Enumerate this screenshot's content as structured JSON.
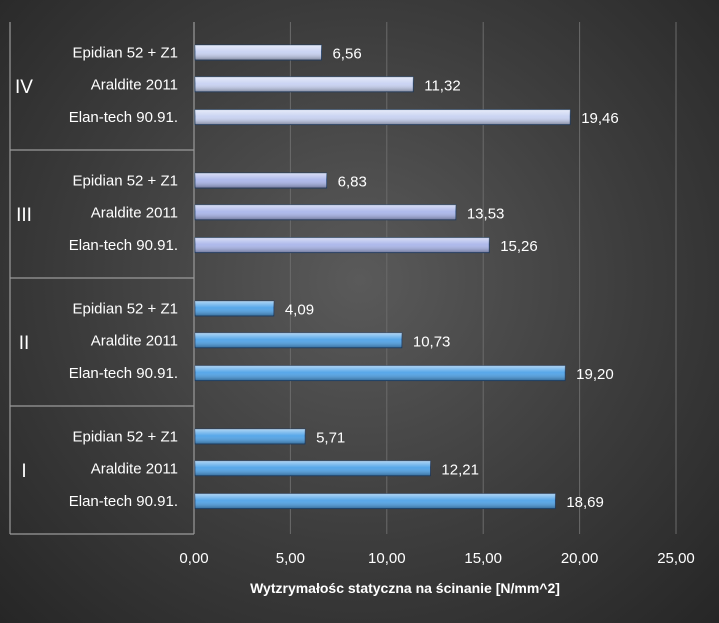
{
  "chart_data": {
    "type": "bar",
    "orientation": "horizontal",
    "title": "",
    "xlabel": "Wytzrymałośc statyczna na ścinanie [N/mm^2]",
    "ylabel": "",
    "xlim": [
      0,
      25
    ],
    "xticks": [
      "0,00",
      "5,00",
      "10,00",
      "15,00",
      "20,00",
      "25,00"
    ],
    "grid": true,
    "legend": "none",
    "groups": [
      {
        "name": "IV",
        "color": "#c8d2f2",
        "bars": [
          {
            "label": "Epidian 52 + Z1",
            "value": 6.56,
            "value_label": "6,56"
          },
          {
            "label": "Araldite 2011",
            "value": 11.32,
            "value_label": "11,32"
          },
          {
            "label": "Elan-tech 90.91.",
            "value": 19.46,
            "value_label": "19,46"
          }
        ]
      },
      {
        "name": "III",
        "color": "#aab6ea",
        "bars": [
          {
            "label": "Epidian 52 + Z1",
            "value": 6.83,
            "value_label": "6,83"
          },
          {
            "label": "Araldite 2011",
            "value": 13.53,
            "value_label": "13,53"
          },
          {
            "label": "Elan-tech 90.91.",
            "value": 15.26,
            "value_label": "15,26"
          }
        ]
      },
      {
        "name": "II",
        "color": "#4fa3e8",
        "bars": [
          {
            "label": "Epidian 52 + Z1",
            "value": 4.09,
            "value_label": "4,09"
          },
          {
            "label": "Araldite 2011",
            "value": 10.73,
            "value_label": "10,73"
          },
          {
            "label": "Elan-tech 90.91.",
            "value": 19.2,
            "value_label": "19,20"
          }
        ]
      },
      {
        "name": "I",
        "color": "#4fa3e8",
        "bars": [
          {
            "label": "Epidian 52 + Z1",
            "value": 5.71,
            "value_label": "5,71"
          },
          {
            "label": "Araldite 2011",
            "value": 12.21,
            "value_label": "12,21"
          },
          {
            "label": "Elan-tech 90.91.",
            "value": 18.69,
            "value_label": "18,69"
          }
        ]
      }
    ]
  }
}
